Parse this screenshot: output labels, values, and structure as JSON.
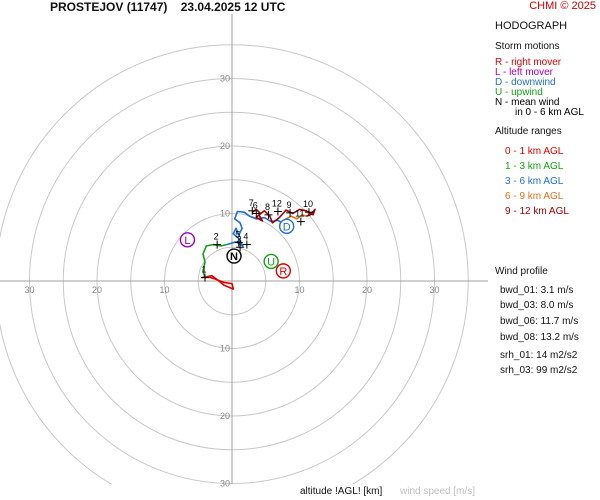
{
  "header": {
    "title": "PROSTEJOV (11747)    23.04.2025 12 UTC",
    "credit": "CHMI © 2025"
  },
  "legend": {
    "heading": "HODOGRAPH",
    "storm_motions_title": "Storm motions",
    "storm_motions": [
      {
        "text": "R - right mover",
        "color": "#e00000"
      },
      {
        "text": "L - left mover",
        "color": "#a000c0"
      },
      {
        "text": "D - downwind",
        "color": "#1e6fd0"
      },
      {
        "text": "U - upwind",
        "color": "#14a014"
      },
      {
        "text": "N - mean wind",
        "color": "#000000"
      },
      {
        "text": "in 0 - 6 km AGL",
        "color": "#000000"
      }
    ],
    "altitude_title": "Altitude ranges",
    "altitude_ranges": [
      {
        "text": "0 - 1 km AGL",
        "color": "#e00000"
      },
      {
        "text": "1 - 3 km AGL",
        "color": "#14a014"
      },
      {
        "text": "3 - 6 km AGL",
        "color": "#1e6fd0"
      },
      {
        "text": "6 - 9 km AGL",
        "color": "#e07020"
      },
      {
        "text": "9 - 12 km AGL",
        "color": "#a00000"
      }
    ],
    "wind_profile_title": "Wind profile",
    "wind_profile": [
      "bwd_01: 3.1 m/s",
      "bwd_03: 8.0 m/s",
      "bwd_06: 11.7 m/s",
      "bwd_08: 13.2 m/s"
    ],
    "helicity": [
      "srh_01: 14 m2/s2",
      "srh_03: 99 m2/s2"
    ]
  },
  "footer": {
    "altitude_label": "altitude !AGL! [km]",
    "wind_label": "wind speed [m/s]"
  },
  "chart_data": {
    "type": "scatter",
    "range": 35,
    "ring_step": 5,
    "ring_labels": [
      10,
      20,
      30
    ],
    "grid": true,
    "series": [
      {
        "name": "0 - 1 km AGL",
        "color": "#e00000",
        "points": [
          [
            -4.5,
            0.5
          ],
          [
            -3.8,
            0.6
          ],
          [
            -3.0,
            0.8
          ],
          [
            -2.2,
            0.2
          ],
          [
            -1.2,
            -0.6
          ],
          [
            0.2,
            -1.2
          ],
          [
            0.0,
            -0.4
          ],
          [
            -1.2,
            -0.2
          ],
          [
            -2.5,
            0.3
          ],
          [
            -3.5,
            0.6
          ],
          [
            -4.0,
            0.5
          ]
        ]
      },
      {
        "name": "1 - 3 km AGL",
        "color": "#14a014",
        "points": [
          [
            -4.0,
            0.5
          ],
          [
            -4.3,
            1.5
          ],
          [
            -4.0,
            2.8
          ],
          [
            -4.3,
            4.0
          ],
          [
            -3.8,
            5.2
          ],
          [
            -2.8,
            5.4
          ],
          [
            -1.6,
            5.2
          ],
          [
            -0.8,
            5.4
          ]
        ]
      },
      {
        "name": "3 - 6 km AGL",
        "color": "#1e6fd0",
        "points": [
          [
            -0.8,
            5.4
          ],
          [
            0.6,
            5.8
          ],
          [
            1.6,
            5.2
          ],
          [
            1.0,
            6.3
          ],
          [
            0.2,
            7.0
          ],
          [
            0.6,
            7.8
          ],
          [
            1.0,
            6.8
          ],
          [
            1.5,
            7.8
          ],
          [
            1.2,
            8.6
          ],
          [
            0.4,
            9.2
          ],
          [
            0.8,
            10.3
          ],
          [
            1.8,
            10.2
          ],
          [
            2.6,
            9.6
          ],
          [
            3.6,
            9.2
          ],
          [
            4.8,
            9.4
          ],
          [
            5.8,
            8.8
          ],
          [
            6.8,
            9.0
          ],
          [
            7.4,
            8.6
          ]
        ]
      },
      {
        "name": "6 - 9 km AGL",
        "color": "#e07020",
        "points": [
          [
            7.4,
            8.6
          ],
          [
            8.0,
            9.2
          ],
          [
            8.8,
            9.6
          ],
          [
            9.6,
            9.2
          ],
          [
            10.4,
            9.8
          ],
          [
            11.0,
            9.6
          ]
        ]
      },
      {
        "name": "9 - 12 km AGL",
        "color": "#a00000",
        "points": [
          [
            11.0,
            9.6
          ],
          [
            11.6,
            9.8
          ],
          [
            12.3,
            10.6
          ],
          [
            12.0,
            9.8
          ],
          [
            11.0,
            10.4
          ],
          [
            10.0,
            10.6
          ],
          [
            9.0,
            10.0
          ],
          [
            8.0,
            10.5
          ],
          [
            7.0,
            9.4
          ],
          [
            6.0,
            8.6
          ],
          [
            5.6,
            9.6
          ],
          [
            4.8,
            10.4
          ],
          [
            4.0,
            9.8
          ],
          [
            4.5,
            8.9
          ],
          [
            3.6,
            9.4
          ],
          [
            4.2,
            10.0
          ],
          [
            3.6,
            10.6
          ],
          [
            3.0,
            10.2
          ]
        ]
      }
    ],
    "height_markers": [
      {
        "label": "1",
        "x": -4.0,
        "y": 0.5
      },
      {
        "label": "2",
        "x": -2.2,
        "y": 5.4
      },
      {
        "label": "3",
        "x": 1.2,
        "y": 5.0
      },
      {
        "label": "4",
        "x": 2.2,
        "y": 5.4
      },
      {
        "label": "5",
        "x": 1.0,
        "y": 5.7
      },
      {
        "label": "6",
        "x": 3.6,
        "y": 10.0
      },
      {
        "label": "7",
        "x": 3.0,
        "y": 10.4
      },
      {
        "label": "8",
        "x": 5.4,
        "y": 9.8
      },
      {
        "label": "9",
        "x": 8.6,
        "y": 10.1
      },
      {
        "label": "10",
        "x": 11.4,
        "y": 10.2
      },
      {
        "label": "11",
        "x": 10.2,
        "y": 8.8
      },
      {
        "label": "12",
        "x": 6.8,
        "y": 10.3
      }
    ],
    "storm_markers": [
      {
        "label": "R",
        "x": 7.6,
        "y": 1.5,
        "color": "#e00000"
      },
      {
        "label": "L",
        "x": -6.6,
        "y": 6.1,
        "color": "#a000c0"
      },
      {
        "label": "D",
        "x": 8.1,
        "y": 8.1,
        "color": "#1e6fd0"
      },
      {
        "label": "U",
        "x": 5.8,
        "y": 2.9,
        "color": "#14a014"
      },
      {
        "label": "N",
        "x": 0.3,
        "y": 3.7,
        "color": "#000000"
      }
    ]
  }
}
